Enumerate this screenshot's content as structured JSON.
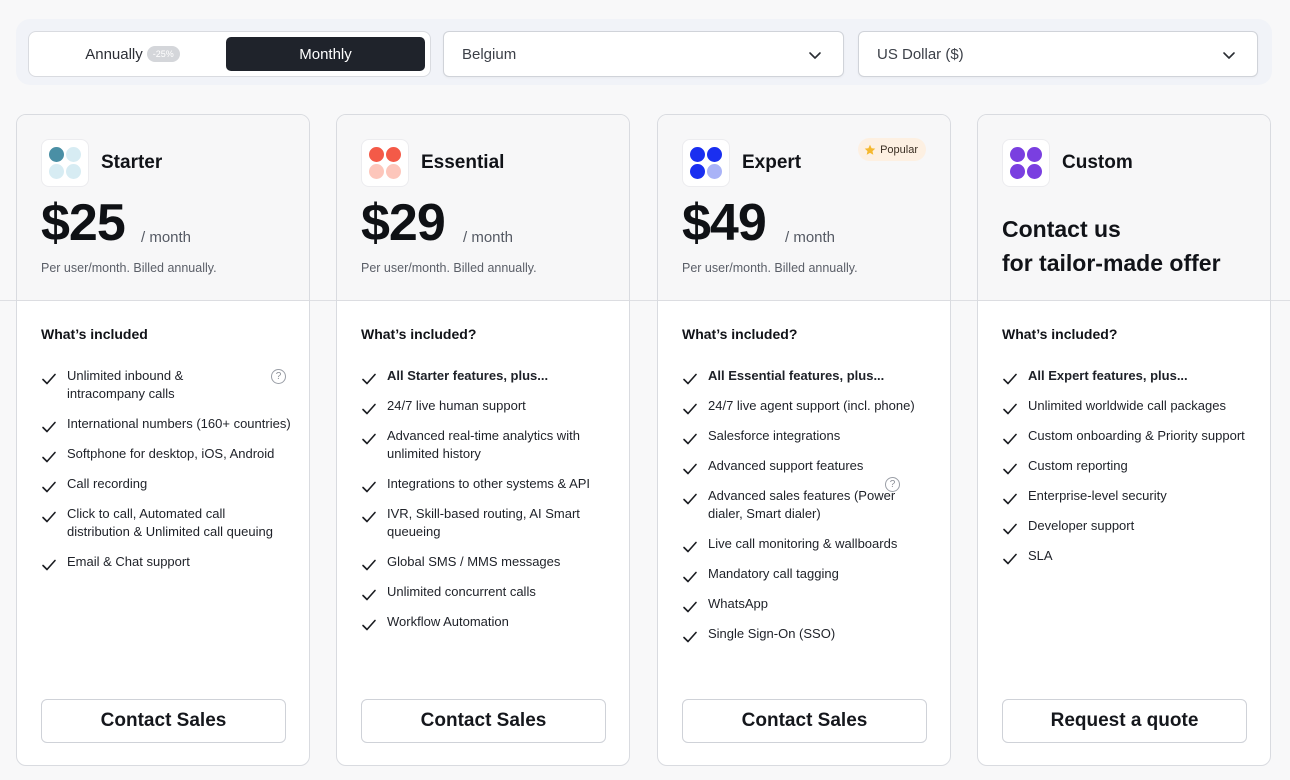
{
  "billing_toggle": {
    "annual_label": "Annually",
    "discount_badge": "-25%",
    "monthly_label": "Monthly",
    "selected": "Monthly"
  },
  "country_select": {
    "value": "Belgium"
  },
  "currency_select": {
    "value": "US Dollar ($)"
  },
  "plans": [
    {
      "name": "Starter",
      "price": "$25",
      "period": "/ month",
      "billing_note": "Per user/month. Billed annually.",
      "included_title": "What’s included",
      "features": [
        "Unlimited inbound & intracompany calls",
        "International numbers (160+ countries)",
        "Softphone for desktop, iOS, Android",
        "Call recording",
        "Click to call, Automated call distribution & Unlimited call queuing",
        "Email & Chat support"
      ],
      "cta": "Contact Sales",
      "logo_colors": [
        "#4a8fa5",
        "#d7ecf3",
        "#d7ecf3",
        "#d7ecf3"
      ]
    },
    {
      "name": "Essential",
      "price": "$29",
      "period": "/ month",
      "billing_note": "Per user/month. Billed annually.",
      "included_title": "What’s included?",
      "features": [
        "All Starter features, plus...",
        "24/7 live human support",
        "Advanced real-time analytics with unlimited history",
        "Integrations to other systems & API",
        "IVR, Skill-based routing, AI Smart queueing",
        "Global SMS / MMS messages",
        "Unlimited concurrent calls",
        "Workflow Automation"
      ],
      "cta": "Contact Sales",
      "logo_colors": [
        "#f45a48",
        "#f45a48",
        "#fdc6bb",
        "#fdc6bb"
      ]
    },
    {
      "name": "Expert",
      "price": "$49",
      "period": "/ month",
      "billing_note": "Per user/month. Billed annually.",
      "badge": "Popular",
      "included_title": "What’s included?",
      "features": [
        "All Essential features, plus...",
        "24/7 live agent support (incl. phone)",
        "Salesforce integrations",
        "Advanced support features",
        "Advanced sales features (Power dialer, Smart dialer)",
        "Live call monitoring & wallboards",
        "Mandatory call tagging",
        "WhatsApp",
        "Single Sign-On (SSO)"
      ],
      "cta": "Contact Sales",
      "logo_colors": [
        "#1a2ff0",
        "#1a2ff0",
        "#1a2ff0",
        "#a9b3f7"
      ]
    },
    {
      "name": "Custom",
      "contact_line1": "Contact us",
      "contact_line2": "for tailor-made offer",
      "included_title": "What’s included?",
      "features": [
        "All Expert features, plus...",
        "Unlimited worldwide call packages",
        "Custom onboarding & Priority support",
        "Custom reporting",
        "Enterprise-level security",
        "Developer support",
        "SLA"
      ],
      "cta": "Request a quote",
      "logo_colors": [
        "#7a3fe0",
        "#7a3fe0",
        "#7a3fe0",
        "#7a3fe0"
      ]
    }
  ],
  "icons": {
    "check": "check-icon",
    "help": "question-circle-icon",
    "star": "star-icon",
    "chevron": "chevron-down-icon"
  },
  "colors": {
    "toggle_active_bg": "#1f232b",
    "badge_bg": "#fdf0e2",
    "star": "#f5b82e"
  }
}
